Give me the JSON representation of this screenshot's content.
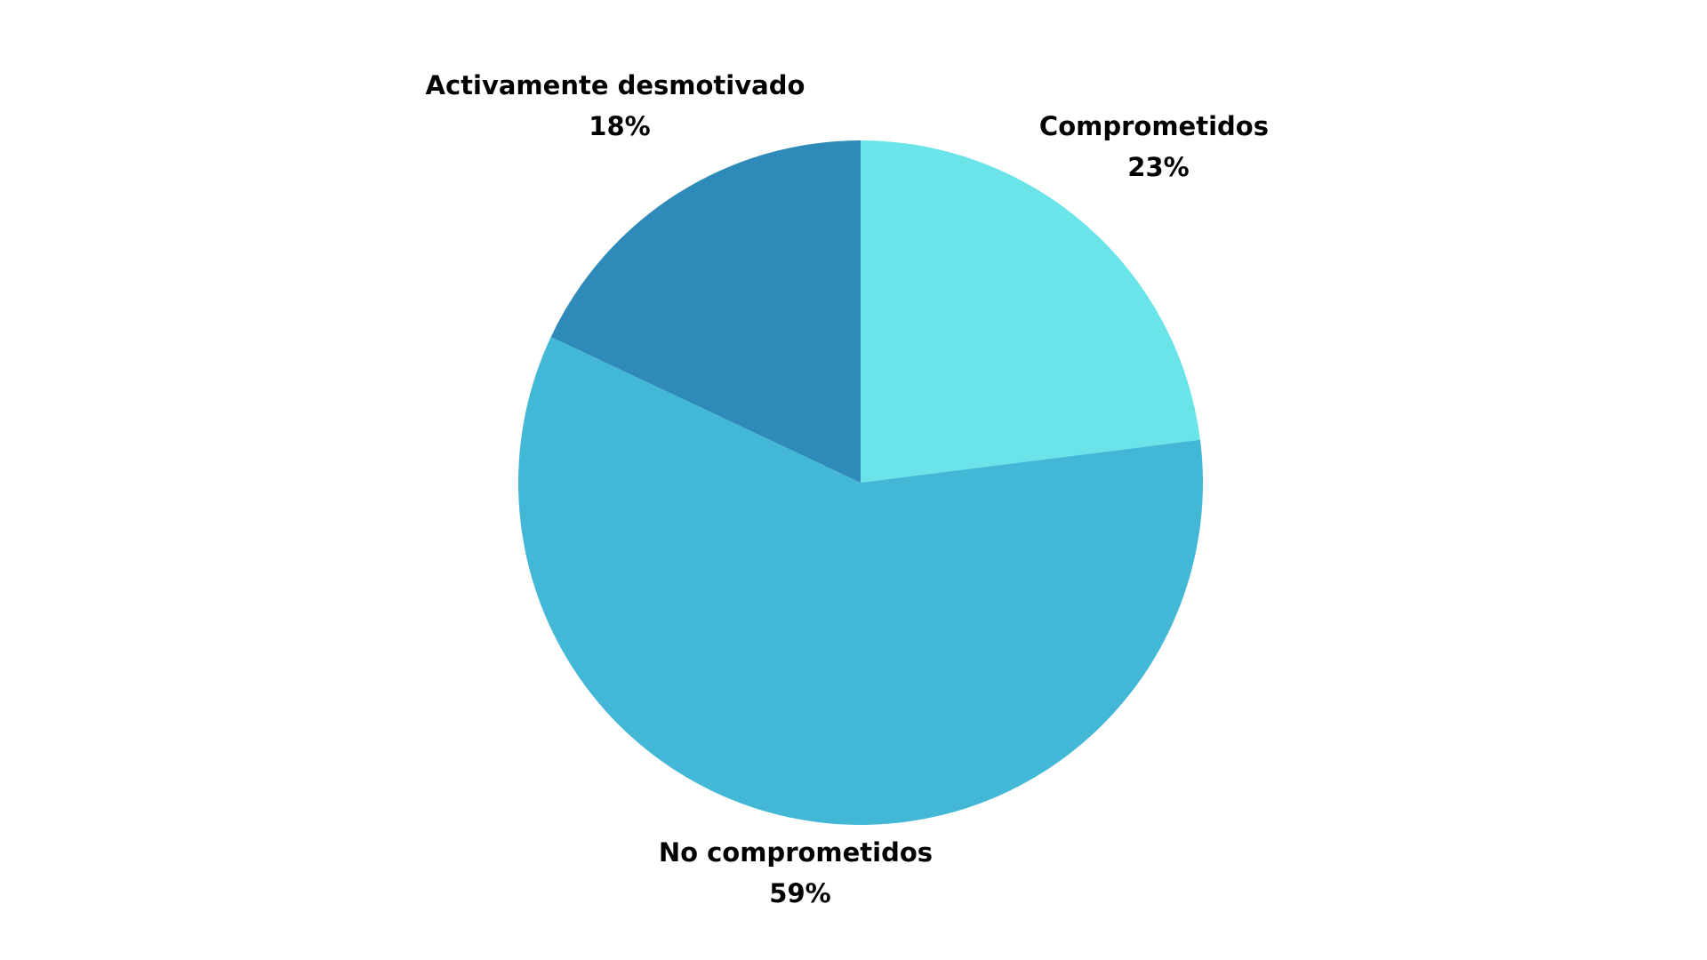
{
  "chart_data": {
    "type": "pie",
    "title": "",
    "start_angle_deg": 0,
    "direction": "clockwise",
    "legend": "none",
    "slices": [
      {
        "label": "Comprometidos",
        "value": 23,
        "value_label": "23%",
        "color": "#6ae4e8"
      },
      {
        "label": "No comprometidos",
        "value": 59,
        "value_label": "59%",
        "color": "#42b7d6"
      },
      {
        "label": "Activamente desmotivado",
        "value": 18,
        "value_label": "18%",
        "color": "#2e8ab8"
      }
    ]
  }
}
